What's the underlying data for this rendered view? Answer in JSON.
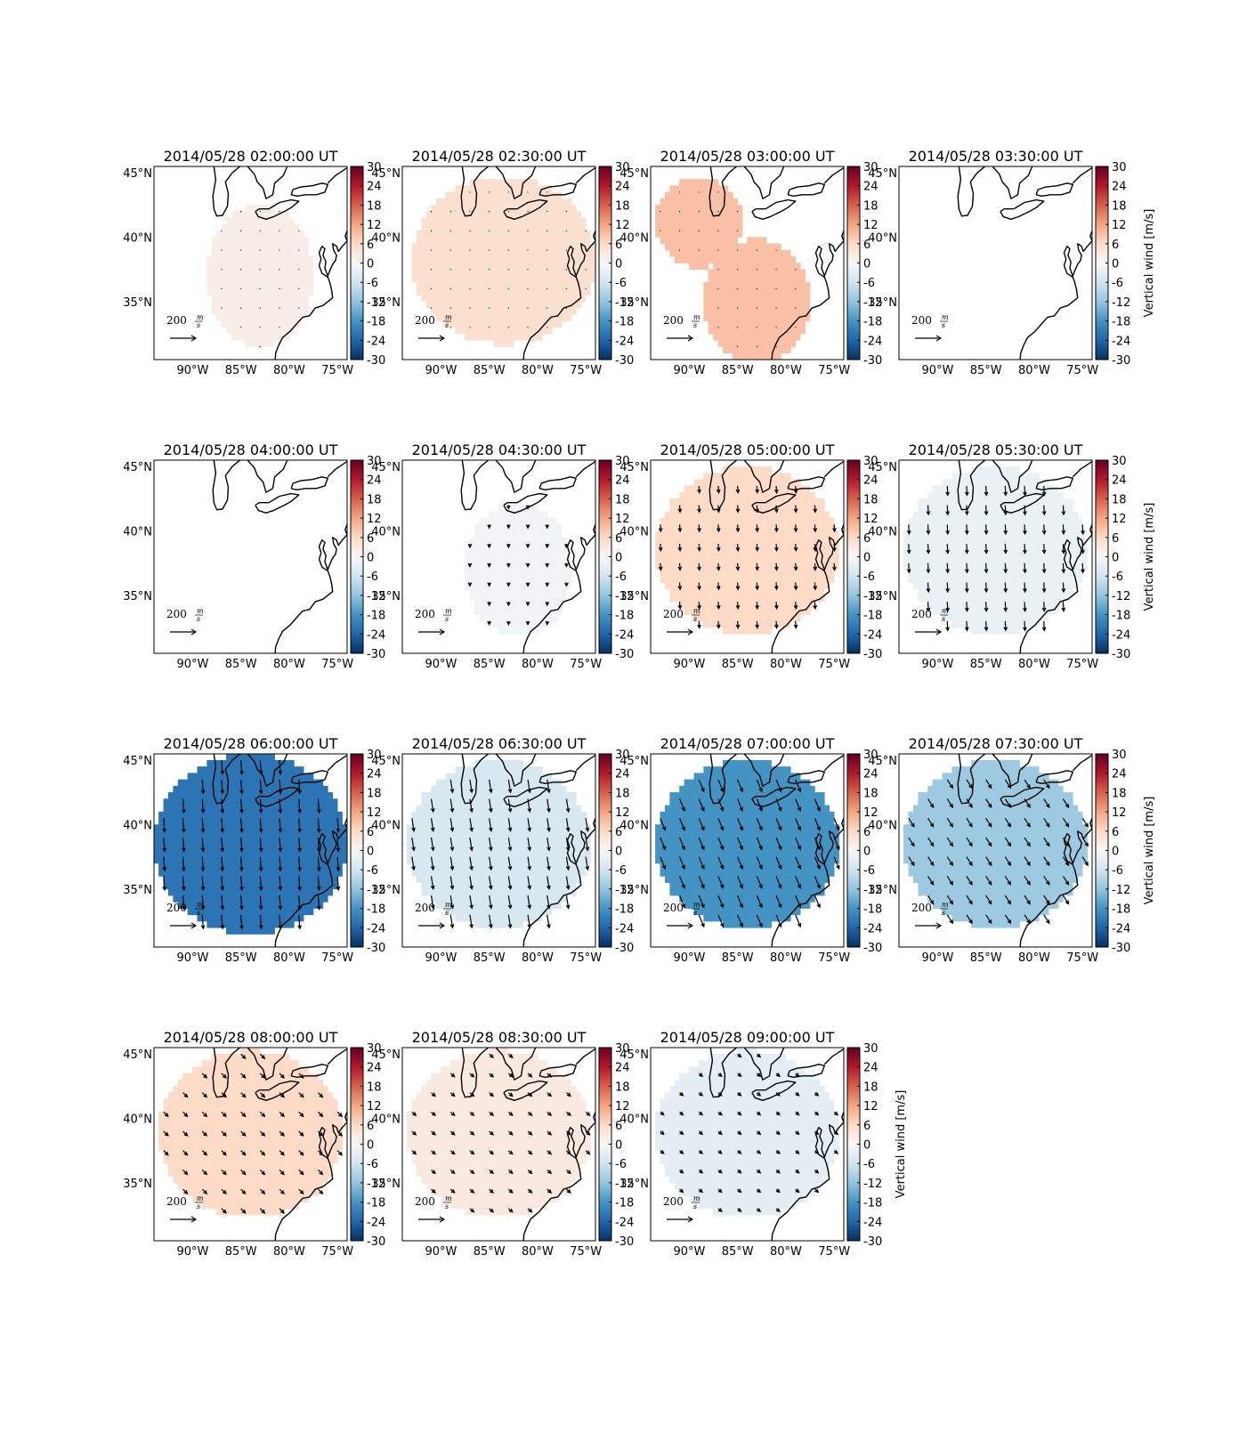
{
  "figure": {
    "colorbar_label": "Vertical wind [m/s]",
    "colorbar_ticks": [
      30,
      24,
      18,
      12,
      6,
      0,
      -6,
      -12,
      -18,
      -24,
      -30
    ],
    "lon_ticks": [
      "90°W",
      "85°W",
      "80°W",
      "75°W"
    ],
    "lat_ticks": [
      "45°N",
      "40°N",
      "35°N"
    ],
    "ref_arrow_label": "200",
    "ref_arrow_unit_num": "m",
    "ref_arrow_unit_den": "s"
  },
  "chart_data": {
    "type": "map",
    "x_range": [
      -94,
      -74
    ],
    "y_range": [
      30.5,
      45.5
    ],
    "color_range": [
      -30,
      30
    ],
    "panels": [
      {
        "title": "2014/05/28 02:00:00 UT",
        "value": 2,
        "wind": [
          0,
          0
        ],
        "region": [
          {
            "lon": -83,
            "lat": 37,
            "rx": 5.5,
            "ry": 5.5
          }
        ],
        "colorbar_label": false
      },
      {
        "title": "2014/05/28 02:30:00 UT",
        "value": 5,
        "wind": [
          0,
          0
        ],
        "region": [
          {
            "lon": -83.5,
            "lat": 38.2,
            "rx": 9.5,
            "ry": 6.5
          }
        ],
        "colorbar_label": false
      },
      {
        "title": "2014/05/28 03:00:00 UT",
        "value": 9,
        "wind": [
          0,
          0
        ],
        "region": [
          {
            "lon": -89,
            "lat": 41.2,
            "rx": 4.5,
            "ry": 3.5
          },
          {
            "lon": -83,
            "lat": 35,
            "rx": 5.5,
            "ry": 4.8
          }
        ],
        "colorbar_label": false
      },
      {
        "title": "2014/05/28 03:30:00 UT",
        "value": null,
        "wind": [
          0,
          0
        ],
        "region": [],
        "colorbar_label": true
      },
      {
        "title": "2014/05/28 04:00:00 UT",
        "value": null,
        "wind": [
          0,
          0
        ],
        "region": [],
        "colorbar_label": false
      },
      {
        "title": "2014/05/28 04:30:00 UT",
        "value": -1,
        "wind": [
          0,
          -0.35
        ],
        "region": [
          {
            "lon": -82,
            "lat": 37,
            "rx": 5.5,
            "ry": 5.2
          }
        ],
        "colorbar_label": false
      },
      {
        "title": "2014/05/28 05:00:00 UT",
        "value": 6,
        "wind": [
          0.05,
          -0.7
        ],
        "region": [
          {
            "lon": -84,
            "lat": 38.5,
            "rx": 9.5,
            "ry": 6.5
          }
        ],
        "colorbar_label": false
      },
      {
        "title": "2014/05/28 05:30:00 UT",
        "value": -2,
        "wind": [
          0.05,
          -0.95
        ],
        "region": [
          {
            "lon": -84,
            "lat": 38.5,
            "rx": 9.5,
            "ry": 6.5
          }
        ],
        "colorbar_label": true
      },
      {
        "title": "2014/05/28 06:00:00 UT",
        "value": -22,
        "wind": [
          0.1,
          -1.4
        ],
        "region": [
          {
            "lon": -84,
            "lat": 38.5,
            "rx": 10,
            "ry": 7
          }
        ],
        "colorbar_label": false
      },
      {
        "title": "2014/05/28 06:30:00 UT",
        "value": -5,
        "wind": [
          0.2,
          -1.3
        ],
        "region": [
          {
            "lon": -84,
            "lat": 38.5,
            "rx": 9.5,
            "ry": 6.5
          }
        ],
        "colorbar_label": false
      },
      {
        "title": "2014/05/28 07:00:00 UT",
        "value": -18,
        "wind": [
          0.5,
          -1.2
        ],
        "region": [
          {
            "lon": -84,
            "lat": 38.5,
            "rx": 9.5,
            "ry": 6.5
          }
        ],
        "colorbar_label": false
      },
      {
        "title": "2014/05/28 07:30:00 UT",
        "value": -11,
        "wind": [
          0.55,
          -0.85
        ],
        "region": [
          {
            "lon": -84,
            "lat": 38.5,
            "rx": 9.5,
            "ry": 6.5
          }
        ],
        "colorbar_label": true
      },
      {
        "title": "2014/05/28 08:00:00 UT",
        "value": 6,
        "wind": [
          0.45,
          -0.45
        ],
        "region": [
          {
            "lon": -84,
            "lat": 38.8,
            "rx": 9.5,
            "ry": 6.5
          }
        ],
        "colorbar_label": false
      },
      {
        "title": "2014/05/28 08:30:00 UT",
        "value": 3,
        "wind": [
          0.4,
          -0.35
        ],
        "region": [
          {
            "lon": -84,
            "lat": 38.8,
            "rx": 9.5,
            "ry": 6.5
          }
        ],
        "colorbar_label": false
      },
      {
        "title": "2014/05/28 09:00:00 UT",
        "value": -3,
        "wind": [
          0.35,
          -0.3
        ],
        "region": [
          {
            "lon": -84,
            "lat": 38.8,
            "rx": 9.5,
            "ry": 6.5
          }
        ],
        "colorbar_label": true
      }
    ]
  }
}
